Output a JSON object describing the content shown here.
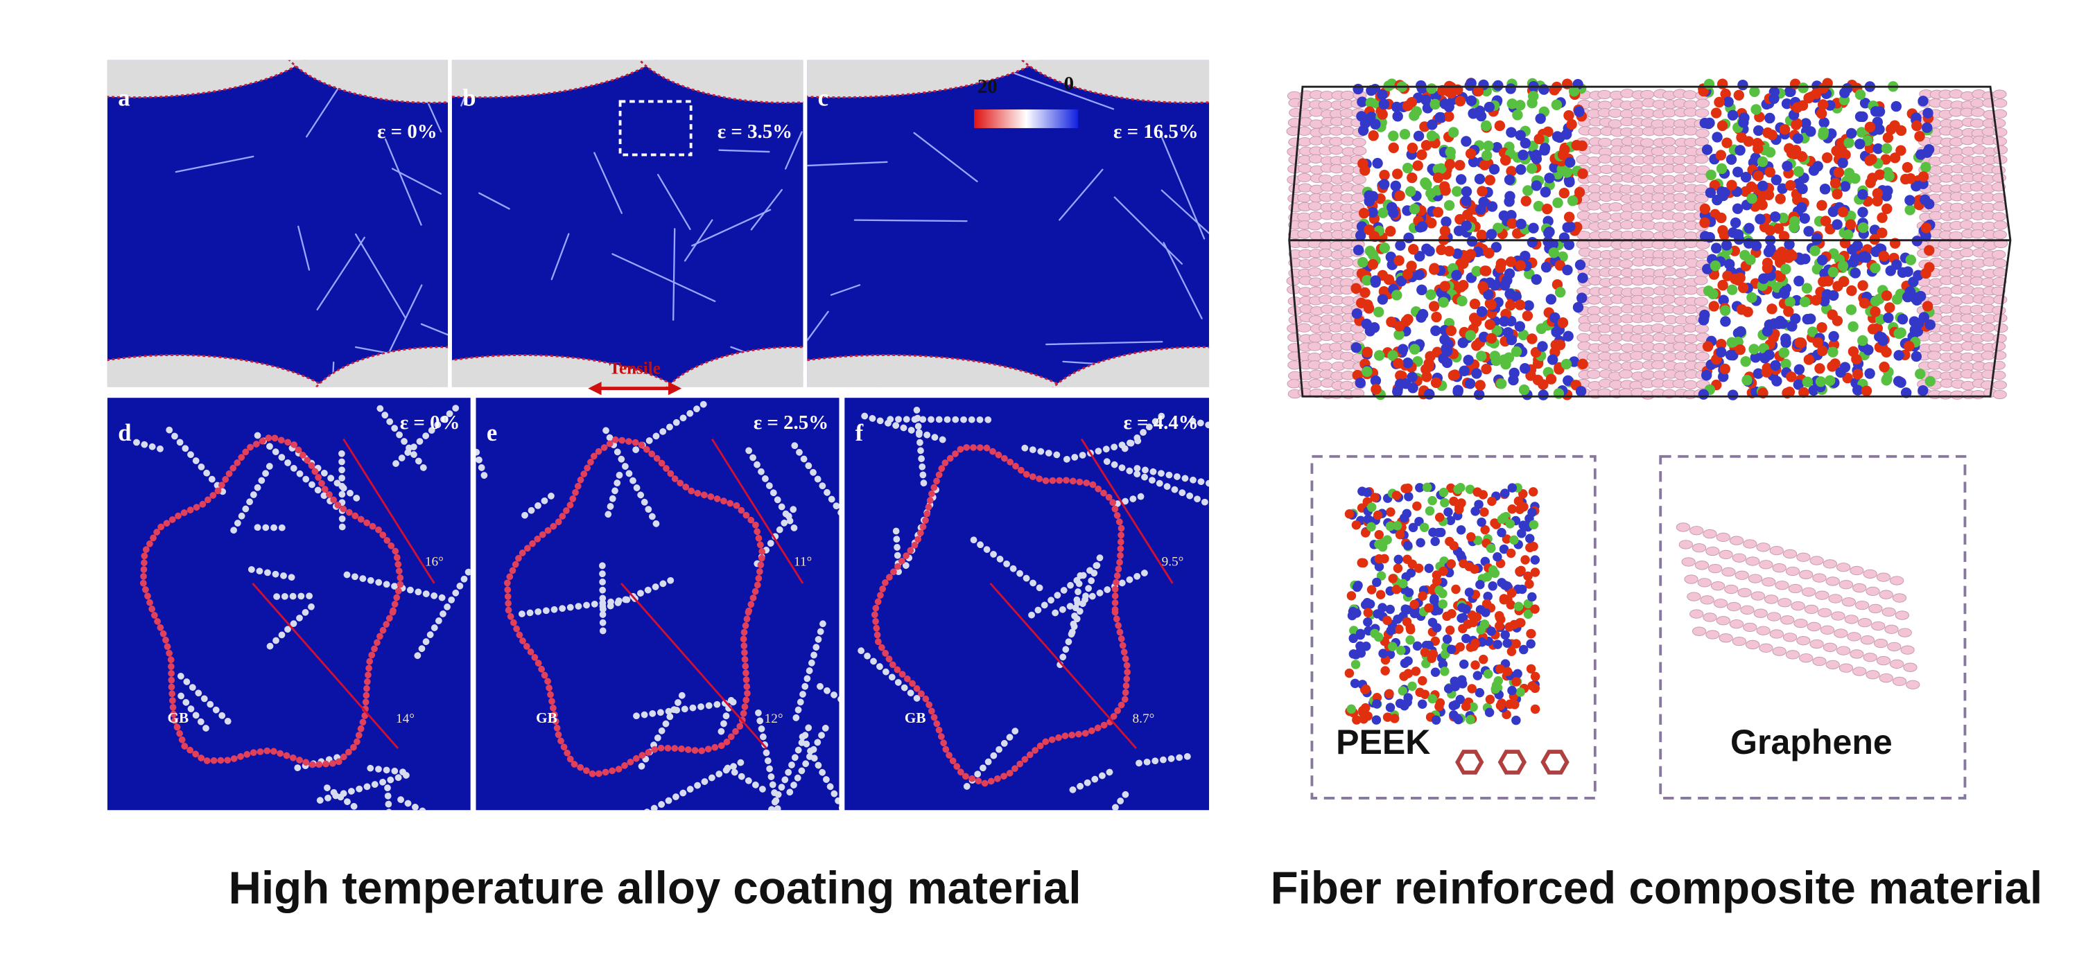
{
  "left_figure": {
    "panels": [
      {
        "label": "a",
        "strain": "ε = 0%"
      },
      {
        "label": "b",
        "strain": "ε = 3.5%"
      },
      {
        "label": "c",
        "strain": "ε = 16.5%"
      },
      {
        "label": "d",
        "strain": "ε = 0%",
        "gb": "GB",
        "angles": [
          "16°",
          "14°"
        ]
      },
      {
        "label": "e",
        "strain": "ε = 2.5%",
        "gb": "GB",
        "angles": [
          "11°",
          "12°"
        ]
      },
      {
        "label": "f",
        "strain": "ε = 4.4%",
        "gb": "GB",
        "angles": [
          "9.5°",
          "8.7°"
        ]
      }
    ],
    "colorbar": {
      "max": "20",
      "min": "0"
    },
    "tensile": "Tensile",
    "caption": "High temperature alloy coating material"
  },
  "right_figure": {
    "peek": "PEEK",
    "graphene": "Graphene",
    "caption": "Fiber reinforced composite material"
  }
}
